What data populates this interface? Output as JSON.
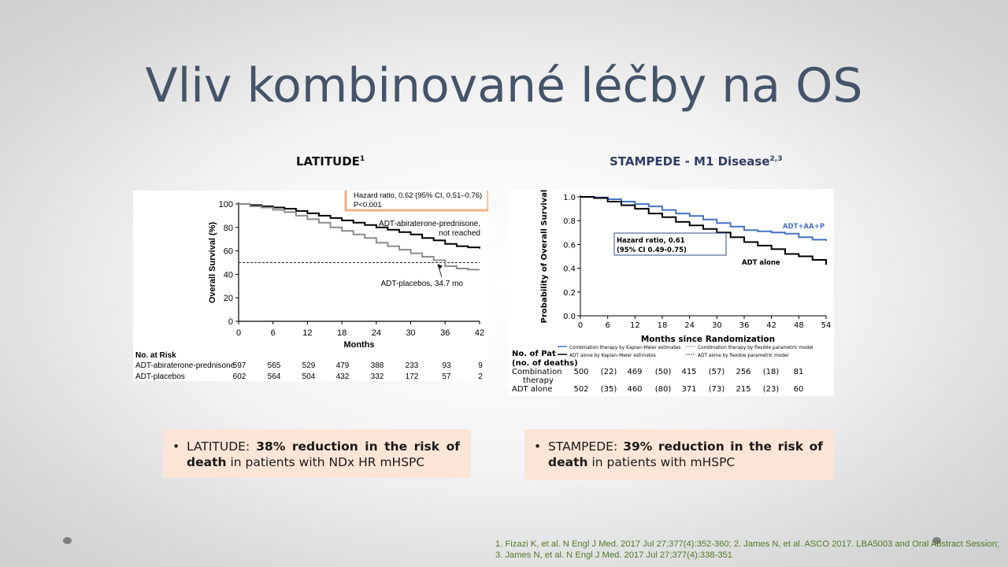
{
  "slide": {
    "title": "Vliv kombinované léčby na OS",
    "left_heading": "LATITUDE",
    "left_heading_sup": "1",
    "right_heading": "STAMPEDE - M1 Disease",
    "right_heading_sup": "2,3",
    "left_summary": {
      "prefix": "LATITUDE: ",
      "bold1": "38% reduction in the risk of",
      "bold2": "death",
      "rest": " in patients with NDx HR mHSPC"
    },
    "right_summary": {
      "prefix": "STAMPEDE: ",
      "bold1": "39% reduction in the risk of",
      "bold2": "death",
      "rest": " in patients with mHSPC"
    },
    "bullet": "•",
    "references": "1. Fizazi K, et al. N Engl J Med. 2017 Jul 27;377(4):352-360; 2. James N, et al. ASCO 2017. LBA5003 and Oral Abstract Session; 3. James N, et al. N Engl J Med. 2017 Jul 27;377(4):338-351"
  },
  "chart_data": [
    {
      "type": "line",
      "name": "LATITUDE",
      "xlabel": "Months",
      "ylabel": "Overall Survival (%)",
      "xlim": [
        0,
        42
      ],
      "ylim": [
        0,
        100
      ],
      "xticks": [
        0,
        6,
        12,
        18,
        24,
        30,
        36,
        42
      ],
      "yticks": [
        0,
        20,
        40,
        60,
        80,
        100
      ],
      "reference_line": 50,
      "hr_box": {
        "line1": "Hazard ratio, 0.62 (95% CI, 0.51–0.76)",
        "line2": "P<0.001",
        "border_color": "#f4b183"
      },
      "annotations": {
        "top_line1": "ADT-abiraterone-prednisone,",
        "top_line2": "not reached",
        "bottom": "ADT-placebos, 34.7 mo"
      },
      "series": [
        {
          "name": "ADT-abiraterone-prednisone",
          "color": "#000000",
          "x": [
            0,
            2,
            4,
            6,
            8,
            10,
            12,
            14,
            16,
            18,
            20,
            22,
            24,
            26,
            28,
            30,
            32,
            34,
            36,
            38,
            40,
            42
          ],
          "y": [
            100,
            99,
            98,
            97,
            96,
            94,
            92,
            90,
            88,
            86,
            84,
            82,
            80,
            78,
            76,
            74,
            71,
            69,
            66,
            64,
            63,
            62
          ]
        },
        {
          "name": "ADT-placebos",
          "color": "#8c8c8c",
          "x": [
            0,
            2,
            4,
            6,
            8,
            10,
            12,
            14,
            16,
            18,
            20,
            22,
            24,
            26,
            28,
            30,
            32,
            34,
            36,
            38,
            40,
            42
          ],
          "y": [
            100,
            98,
            97,
            95,
            93,
            90,
            87,
            84,
            80,
            77,
            74,
            71,
            67,
            64,
            61,
            58,
            55,
            52,
            47,
            45,
            44,
            44
          ]
        }
      ],
      "risk_table": {
        "title": "No. at Risk",
        "rows": [
          {
            "label": "ADT-abiraterone-prednisone",
            "values": [
              597,
              565,
              529,
              479,
              388,
              233,
              93,
              9
            ]
          },
          {
            "label": "ADT-placebos",
            "values": [
              602,
              564,
              504,
              432,
              332,
              172,
              57,
              2
            ]
          }
        ]
      }
    },
    {
      "type": "line",
      "name": "STAMPEDE - M1 Disease",
      "xlabel": "Months since Randomization",
      "ylabel": "Probability of Overall Survival",
      "xlim": [
        0,
        54
      ],
      "ylim": [
        0,
        1.0
      ],
      "xticks": [
        0,
        6,
        12,
        18,
        24,
        30,
        36,
        42,
        48,
        54
      ],
      "yticks": [
        "0.0",
        "0.2",
        "0.4",
        "0.6",
        "0.8",
        "1.0"
      ],
      "hr_box": {
        "line1": "Hazard  ratio, 0.61",
        "line2": "(95% CI 0.49-0.75)",
        "border_color": "#2e4a8c"
      },
      "annotations": {
        "top": "ADT+AA+P",
        "bottom": "ADT alone"
      },
      "series": [
        {
          "name": "ADT+AA+P",
          "color": "#4472c4",
          "x": [
            0,
            3,
            6,
            9,
            12,
            15,
            18,
            21,
            24,
            27,
            30,
            33,
            36,
            39,
            42,
            45,
            48,
            51,
            54
          ],
          "y": [
            1.0,
            0.995,
            0.98,
            0.96,
            0.94,
            0.92,
            0.89,
            0.86,
            0.84,
            0.81,
            0.78,
            0.75,
            0.72,
            0.71,
            0.7,
            0.69,
            0.66,
            0.64,
            0.63
          ]
        },
        {
          "name": "ADT alone",
          "color": "#000000",
          "x": [
            0,
            3,
            6,
            9,
            12,
            15,
            18,
            21,
            24,
            27,
            30,
            33,
            36,
            39,
            42,
            45,
            48,
            51,
            54
          ],
          "y": [
            1.0,
            0.99,
            0.96,
            0.93,
            0.9,
            0.86,
            0.83,
            0.79,
            0.76,
            0.73,
            0.7,
            0.66,
            0.62,
            0.59,
            0.56,
            0.52,
            0.5,
            0.47,
            0.43
          ]
        }
      ],
      "legend": [
        "Combination therapy by Kaplan–Meier estimates",
        "Combination therapy by flexible parametric model",
        "ADT alone by Kaplan–Meier estimates",
        "ADT alone by flexible parametric model"
      ],
      "risk_table": {
        "title1": "No. of Pat",
        "title2": "(no. of deaths)",
        "rows": [
          {
            "label1": "Combination",
            "label2": "therapy",
            "values": [
              "500",
              "(22)",
              "469",
              "(50)",
              "415",
              "(57)",
              "256",
              "(18)",
              "81"
            ]
          },
          {
            "label1": "ADT alone",
            "label2": "",
            "values": [
              "502",
              "(35)",
              "460",
              "(80)",
              "371",
              "(73)",
              "215",
              "(23)",
              "60"
            ]
          }
        ]
      }
    }
  ]
}
